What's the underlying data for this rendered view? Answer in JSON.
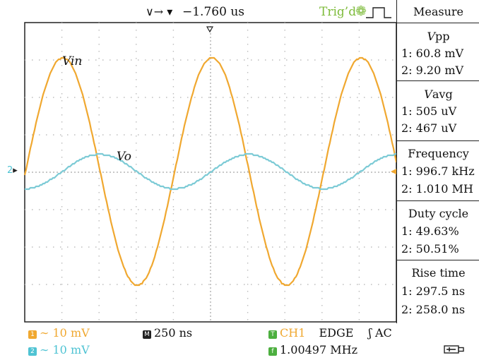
{
  "topbar": {
    "arrows": "∨→ ▾",
    "delay": "−1.760 us",
    "trigger_status": "Trig’d",
    "trigger_icon": "gear-icon",
    "pulse_icon": "rising-pulse-icon"
  },
  "screen": {
    "signals": [
      {
        "label": "Vin",
        "color": "#f0a830",
        "amplitude_mv": 30.4
      },
      {
        "label": "Vo",
        "color": "#7dcbd6",
        "amplitude_mv": 4.6
      }
    ],
    "ch2_marker": "2"
  },
  "measure": {
    "title": "Measure",
    "vpp": {
      "name_italic": "V",
      "name_rest": "pp",
      "ch1": "1: 60.8 mV",
      "ch2": "2: 9.20 mV"
    },
    "vavg": {
      "name_italic": "V",
      "name_rest": "avg",
      "ch1": "1: 505 uV",
      "ch2": "2: 467 uV"
    },
    "frequency": {
      "name": "Frequency",
      "ch1": "1: 996.7 kHz",
      "ch2": "2: 1.010 MH"
    },
    "duty_cycle": {
      "name": "Duty cycle",
      "ch1": "1: 49.63%",
      "ch2": "2: 50.51%"
    },
    "rise_time": {
      "name": "Rise time",
      "ch1": "1: 297.5 ns",
      "ch2": "2: 258.0 ns"
    }
  },
  "bottom": {
    "ch1_badge": "1",
    "ch1_scale": "∼ 10 mV",
    "ch2_badge": "2",
    "ch2_scale": "∼ 10 mV",
    "timebase_badge": "M",
    "timebase": "250 ns",
    "trig_badge": "T",
    "trig_source": "CH1",
    "trig_type": "EDGE",
    "trig_coupling": "ʃ AC",
    "freq_badge": "f",
    "trig_freq": "1.00497 MHz",
    "usb_icon": "usb-icon"
  },
  "colors": {
    "ch1": "#f0a830",
    "ch2": "#4fc3d3",
    "trig": "#4caf3f"
  }
}
